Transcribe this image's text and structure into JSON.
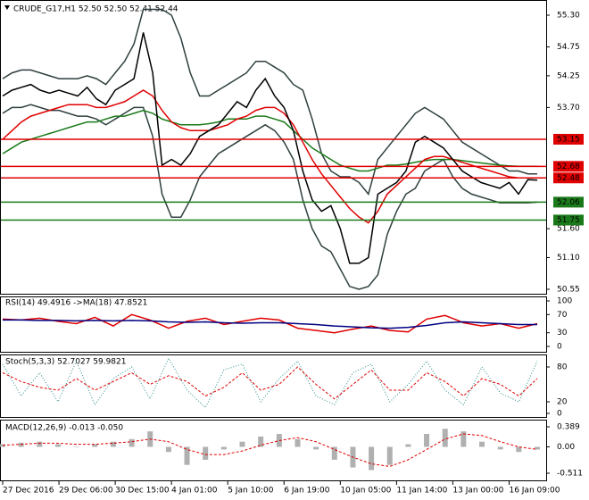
{
  "chart_data": [
    {
      "type": "line",
      "title": "CRUDE_G17,H1  52.50 52.50 52.41 52.44",
      "categories": [
        "27 Dec 2016",
        null,
        null,
        null,
        null,
        null,
        "29 Dec 06:00",
        null,
        null,
        null,
        null,
        null,
        "30 Dec 15:00",
        null,
        null,
        null,
        null,
        null,
        "4 Jan 01:00",
        null,
        null,
        null,
        null,
        null,
        "5 Jan 10:00",
        null,
        null,
        null,
        null,
        null,
        "6 Jan 19:00",
        null,
        null,
        null,
        null,
        null,
        "10 Jan 05:00",
        null,
        null,
        null,
        null,
        null,
        "11 Jan 14:00",
        null,
        null,
        null,
        null,
        null,
        "13 Jan 00:00",
        null,
        null,
        null,
        null,
        null,
        "16 Jan 09:00",
        null,
        null,
        null
      ],
      "series": [
        {
          "color": "#2f3f3f",
          "style": "line",
          "values": [
            54.2,
            54.3,
            54.35,
            54.35,
            54.3,
            54.25,
            54.2,
            54.2,
            54.2,
            54.25,
            54.2,
            54.1,
            54.3,
            54.5,
            54.8,
            55.4,
            55.4,
            55.4,
            55.3,
            54.9,
            54.3,
            53.9,
            53.9,
            54.0,
            54.1,
            54.2,
            54.3,
            54.5,
            54.5,
            54.4,
            54.3,
            54.1,
            54.0,
            53.5,
            52.9,
            52.6,
            52.5,
            52.5,
            52.4,
            52.2,
            52.8,
            53.0,
            53.2,
            53.4,
            53.6,
            53.7,
            53.6,
            53.5,
            53.3,
            53.1,
            53.0,
            52.9,
            52.8,
            52.7,
            52.6,
            52.6,
            52.55,
            52.55
          ]
        },
        {
          "color": "#2f3f3f",
          "style": "line",
          "values": [
            53.6,
            53.7,
            53.7,
            53.75,
            53.7,
            53.65,
            53.65,
            53.6,
            53.55,
            53.55,
            53.5,
            53.4,
            53.5,
            53.6,
            53.7,
            53.7,
            53.2,
            52.2,
            51.8,
            51.8,
            52.1,
            52.5,
            52.7,
            52.9,
            53.0,
            53.1,
            53.2,
            53.3,
            53.4,
            53.3,
            53.1,
            52.8,
            52.1,
            51.6,
            51.3,
            51.2,
            50.9,
            50.6,
            50.55,
            50.6,
            50.8,
            51.5,
            51.9,
            52.2,
            52.3,
            52.6,
            52.7,
            52.8,
            52.5,
            52.3,
            52.2,
            52.15,
            52.1,
            52.05,
            52.05,
            52.05,
            52.05,
            52.06
          ]
        },
        {
          "color": "#1a7a1a",
          "style": "line",
          "values": [
            52.9,
            53.0,
            53.1,
            53.15,
            53.2,
            53.25,
            53.3,
            53.35,
            53.4,
            53.45,
            53.45,
            53.5,
            53.55,
            53.55,
            53.6,
            53.65,
            53.6,
            53.5,
            53.45,
            53.4,
            53.4,
            53.4,
            53.42,
            53.45,
            53.5,
            53.5,
            53.5,
            53.55,
            53.55,
            53.5,
            53.45,
            53.3,
            53.15,
            53.0,
            52.9,
            52.8,
            52.7,
            52.65,
            52.6,
            52.6,
            52.65,
            52.7,
            52.7,
            52.72,
            52.75,
            52.78,
            52.8,
            52.8,
            52.8,
            52.78,
            52.76,
            52.74,
            52.72,
            52.7,
            52.69,
            52.68,
            52.68,
            52.68
          ]
        },
        {
          "color": "#e00000",
          "style": "line",
          "values": [
            53.15,
            53.3,
            53.45,
            53.55,
            53.6,
            53.65,
            53.7,
            53.75,
            53.75,
            53.75,
            53.7,
            53.7,
            53.75,
            53.8,
            53.9,
            54.0,
            53.9,
            53.65,
            53.45,
            53.35,
            53.3,
            53.3,
            53.3,
            53.35,
            53.4,
            53.5,
            53.55,
            53.65,
            53.7,
            53.7,
            53.6,
            53.4,
            53.1,
            52.8,
            52.55,
            52.35,
            52.15,
            51.95,
            51.8,
            51.7,
            51.9,
            52.2,
            52.35,
            52.5,
            52.65,
            52.8,
            52.85,
            52.85,
            52.8,
            52.75,
            52.7,
            52.65,
            52.6,
            52.55,
            52.5,
            52.48,
            52.48,
            52.48
          ]
        },
        {
          "color": "#000000",
          "style": "line",
          "values": [
            53.9,
            54.0,
            54.05,
            54.1,
            54.0,
            53.95,
            54.0,
            53.95,
            53.9,
            54.05,
            53.85,
            53.75,
            54.0,
            54.1,
            54.2,
            55.0,
            54.3,
            52.7,
            52.8,
            52.7,
            52.9,
            53.2,
            53.3,
            53.4,
            53.6,
            53.8,
            53.7,
            54.0,
            54.2,
            53.9,
            53.7,
            53.3,
            52.6,
            52.1,
            51.9,
            52.0,
            51.6,
            51.0,
            51.0,
            51.1,
            52.2,
            52.3,
            52.4,
            52.6,
            53.1,
            53.2,
            53.1,
            53.0,
            52.8,
            52.6,
            52.5,
            52.4,
            52.35,
            52.3,
            52.4,
            52.2,
            52.45,
            52.44
          ]
        }
      ],
      "levels": [
        {
          "value": 53.15,
          "color": "#e00000"
        },
        {
          "value": 52.68,
          "color": "#e00000"
        },
        {
          "value": 52.48,
          "color": "#e00000"
        },
        {
          "value": 52.06,
          "color": "#1a7a1a"
        },
        {
          "value": 51.75,
          "color": "#1a7a1a"
        }
      ],
      "ylim": [
        50.55,
        55.3
      ],
      "yticks": [
        {
          "value": 55.3,
          "label": "55.30"
        },
        {
          "value": 54.75,
          "label": "54.75"
        },
        {
          "value": 54.25,
          "label": "54.25"
        },
        {
          "value": 53.7,
          "label": "53.70"
        },
        {
          "value": 51.6,
          "label": "51.60"
        },
        {
          "value": 51.1,
          "label": "51.10"
        },
        {
          "value": 50.55,
          "label": "50.55"
        }
      ]
    },
    {
      "type": "line",
      "title": "RSI(14) 49.4916 ->MA(18) 47.8521",
      "ylim": [
        0,
        100
      ],
      "yticks": [
        100,
        70,
        30,
        0
      ],
      "series": [
        {
          "color": "#e00000",
          "style": "line",
          "values": [
            60,
            58,
            62,
            55,
            50,
            64,
            45,
            70,
            58,
            40,
            55,
            62,
            48,
            55,
            62,
            58,
            40,
            35,
            30,
            38,
            45,
            35,
            32,
            60,
            68,
            52,
            45,
            50,
            40,
            50
          ]
        },
        {
          "color": "#000080",
          "style": "line",
          "values": [
            58,
            58,
            57,
            57,
            56,
            57,
            56,
            57,
            56,
            54,
            53,
            54,
            52,
            51,
            52,
            52,
            50,
            48,
            45,
            43,
            41,
            40,
            42,
            46,
            52,
            54,
            52,
            50,
            48,
            48
          ]
        }
      ]
    },
    {
      "type": "line",
      "title": "Stoch(5,3,3) 52.7027 59.9821",
      "ylim": [
        0,
        100
      ],
      "yticks": [
        80,
        20,
        0
      ],
      "series": [
        {
          "color": "#2e8b8b",
          "style": "dot",
          "values": [
            85,
            30,
            70,
            20,
            90,
            15,
            60,
            80,
            25,
            95,
            40,
            10,
            75,
            85,
            20,
            60,
            90,
            30,
            15,
            70,
            85,
            20,
            50,
            90,
            40,
            15,
            80,
            35,
            20,
            90
          ]
        },
        {
          "color": "#e00000",
          "style": "dash",
          "values": [
            70,
            55,
            45,
            40,
            60,
            40,
            55,
            70,
            50,
            65,
            55,
            30,
            45,
            70,
            40,
            50,
            80,
            50,
            25,
            50,
            75,
            40,
            40,
            70,
            55,
            30,
            60,
            50,
            30,
            60
          ]
        }
      ]
    },
    {
      "type": "bar",
      "title": "MACD(12,26,9) -0.013 -0.050",
      "ylim": [
        -0.511,
        0.389
      ],
      "yticks": [
        0.389,
        {
          "value": 0,
          "label": "0.00"
        },
        -0.511
      ],
      "series": [
        {
          "color": "#b0b0b0",
          "style": "bar",
          "values": [
            0.05,
            0.08,
            0.1,
            0.05,
            0.0,
            0.05,
            0.1,
            0.15,
            0.3,
            -0.1,
            -0.35,
            -0.25,
            -0.05,
            0.1,
            0.2,
            0.25,
            0.15,
            -0.05,
            -0.25,
            -0.4,
            -0.45,
            -0.35,
            0.05,
            0.25,
            0.35,
            0.3,
            0.1,
            -0.05,
            -0.1,
            -0.05
          ]
        },
        {
          "color": "#e00000",
          "style": "dash",
          "values": [
            0.03,
            0.05,
            0.07,
            0.07,
            0.05,
            0.05,
            0.07,
            0.1,
            0.15,
            0.1,
            -0.05,
            -0.15,
            -0.15,
            -0.08,
            0.03,
            0.12,
            0.18,
            0.1,
            -0.05,
            -0.2,
            -0.33,
            -0.38,
            -0.25,
            -0.05,
            0.15,
            0.25,
            0.22,
            0.1,
            0.0,
            -0.05
          ]
        }
      ]
    }
  ]
}
